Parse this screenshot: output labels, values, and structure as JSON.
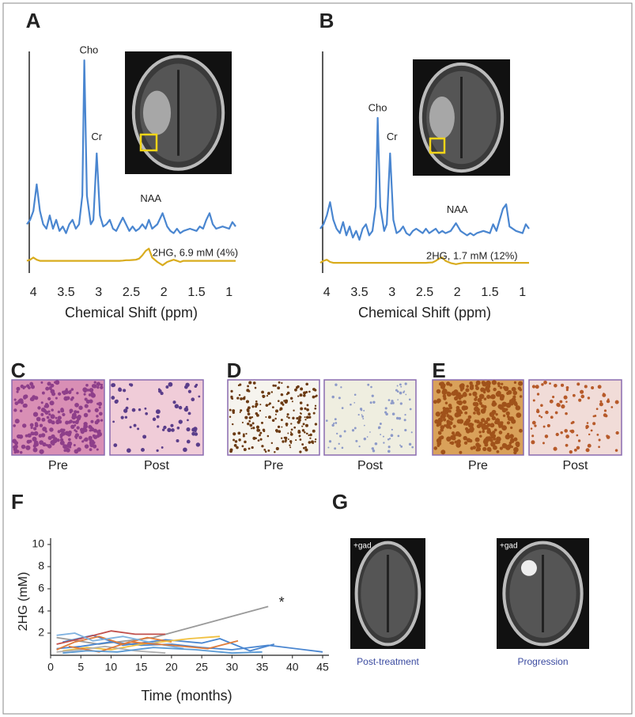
{
  "chart_data": [
    {
      "type": "line",
      "panel_label": "A",
      "xlabel": "Chemical Shift (ppm)",
      "xlim": [
        4.1,
        0.9
      ],
      "xticks": [
        4,
        3.5,
        3,
        2.5,
        2,
        1.5,
        1
      ],
      "ylim": [
        0,
        100
      ],
      "x": [
        4.1,
        4.05,
        4.0,
        3.95,
        3.9,
        3.85,
        3.8,
        3.75,
        3.7,
        3.65,
        3.6,
        3.55,
        3.5,
        3.45,
        3.4,
        3.35,
        3.3,
        3.25,
        3.22,
        3.18,
        3.12,
        3.08,
        3.03,
        2.98,
        2.93,
        2.88,
        2.83,
        2.78,
        2.73,
        2.68,
        2.63,
        2.58,
        2.53,
        2.48,
        2.43,
        2.38,
        2.33,
        2.28,
        2.23,
        2.18,
        2.1,
        2.02,
        1.95,
        1.9,
        1.85,
        1.8,
        1.75,
        1.7,
        1.6,
        1.5,
        1.45,
        1.4,
        1.35,
        1.3,
        1.25,
        1.2,
        1.1,
        1.0,
        0.95,
        0.9
      ],
      "series": [
        {
          "color": "#4a86d0",
          "values": [
            22,
            24,
            28,
            40,
            28,
            22,
            20,
            26,
            20,
            24,
            19,
            21,
            18,
            22,
            24,
            20,
            22,
            35,
            96,
            35,
            22,
            24,
            54,
            26,
            21,
            22,
            24,
            20,
            19,
            22,
            25,
            22,
            19,
            21,
            19,
            20,
            22,
            20,
            24,
            20,
            22,
            27,
            21,
            19,
            18,
            20,
            18,
            19,
            20,
            19,
            21,
            20,
            24,
            27,
            22,
            20,
            21,
            20,
            23,
            21
          ]
        },
        {
          "color": "#d9ac1e",
          "values": [
            5.5,
            6,
            7,
            6,
            5.5,
            5.5,
            5.5,
            5.5,
            5.5,
            5.5,
            5.5,
            5.5,
            5.5,
            5.5,
            5.5,
            5.5,
            5.5,
            5.5,
            5.5,
            5.5,
            5.5,
            5.5,
            5.5,
            5.5,
            5.5,
            5.5,
            5.5,
            5.5,
            5.5,
            5.5,
            5.6,
            5.8,
            5.8,
            5.9,
            6,
            6.5,
            8,
            10,
            11,
            7,
            5,
            3.5,
            5,
            5.5,
            6,
            5.5,
            5,
            5.5,
            5.5,
            5.5,
            5.5,
            5.5,
            5.5,
            5.5,
            5.5,
            5.5,
            5.5,
            5.5,
            5.5,
            5.5
          ]
        }
      ],
      "annotations": [
        {
          "text": "Cho",
          "x": 3.15,
          "y": 96
        },
        {
          "text": "Cr",
          "x": 3.03,
          "y": 57
        },
        {
          "text": "NAA",
          "x": 2.2,
          "y": 29
        },
        {
          "text": "2HG, 6.9 mM (4%)",
          "x": 2.2,
          "y": 6
        }
      ]
    },
    {
      "type": "line",
      "panel_label": "B",
      "xlabel": "Chemical Shift (ppm)",
      "xlim": [
        4.1,
        0.9
      ],
      "xticks": [
        4,
        3.5,
        3,
        2.5,
        2,
        1.5,
        1
      ],
      "ylim": [
        0,
        100
      ],
      "x": [
        4.1,
        4.05,
        4.0,
        3.95,
        3.9,
        3.85,
        3.8,
        3.75,
        3.7,
        3.65,
        3.6,
        3.55,
        3.5,
        3.45,
        3.4,
        3.35,
        3.3,
        3.25,
        3.22,
        3.18,
        3.12,
        3.08,
        3.03,
        2.98,
        2.93,
        2.88,
        2.83,
        2.78,
        2.73,
        2.68,
        2.63,
        2.58,
        2.53,
        2.48,
        2.43,
        2.38,
        2.33,
        2.28,
        2.23,
        2.18,
        2.1,
        2.02,
        1.95,
        1.9,
        1.85,
        1.8,
        1.75,
        1.7,
        1.6,
        1.5,
        1.45,
        1.4,
        1.35,
        1.3,
        1.25,
        1.2,
        1.1,
        1.0,
        0.95,
        0.9
      ],
      "series": [
        {
          "color": "#4a86d0",
          "values": [
            20,
            22,
            26,
            32,
            24,
            20,
            18,
            23,
            17,
            21,
            16,
            19,
            15,
            20,
            22,
            17,
            19,
            30,
            70,
            30,
            19,
            22,
            54,
            24,
            18,
            19,
            21,
            18,
            17,
            19,
            20,
            19,
            18,
            20,
            18,
            19,
            20,
            18,
            19,
            18,
            19,
            22.5,
            19,
            18,
            17,
            18,
            17,
            18,
            19,
            18,
            22,
            19,
            24,
            29,
            31,
            21,
            19,
            18,
            22,
            20
          ]
        },
        {
          "color": "#d9ac1e",
          "values": [
            4.6,
            5.5,
            6,
            5,
            4.6,
            4.6,
            4.6,
            4.6,
            4.6,
            4.6,
            4.6,
            4.6,
            4.6,
            4.6,
            4.6,
            4.6,
            4.6,
            4.6,
            4.6,
            4.6,
            4.6,
            4.6,
            4.6,
            4.6,
            4.6,
            4.6,
            4.6,
            4.6,
            4.6,
            4.6,
            4.6,
            4.6,
            4.6,
            4.6,
            4.7,
            4.8,
            5.5,
            6.5,
            7,
            5.5,
            4.5,
            4,
            4.4,
            4.6,
            4.6,
            4.6,
            4.6,
            4.6,
            4.6,
            4.6,
            4.6,
            4.6,
            4.6,
            4.6,
            4.6,
            4.6,
            4.6,
            4.6,
            4.6,
            4.6
          ]
        }
      ],
      "annotations": [
        {
          "text": "Cho",
          "x": 3.22,
          "y": 70
        },
        {
          "text": "Cr",
          "x": 3.0,
          "y": 57
        },
        {
          "text": "NAA",
          "x": 2.0,
          "y": 24
        },
        {
          "text": "2HG, 1.7 mM (12%)",
          "x": 2.5,
          "y": 4.6
        }
      ]
    },
    {
      "type": "line",
      "panel_label": "F",
      "xlabel": "Time (months)",
      "ylabel": "2HG (mM)",
      "xlim": [
        0,
        45
      ],
      "xticks": [
        0,
        5,
        10,
        15,
        20,
        25,
        30,
        35,
        40,
        45
      ],
      "ylim": [
        0,
        10
      ],
      "yticks": [
        2,
        4,
        6,
        8,
        10
      ],
      "series": [
        {
          "color": "#9a9a9a",
          "x": [
            1,
            8,
            17,
            36
          ],
          "values": [
            1.6,
            1.0,
            1.6,
            4.4
          ]
        },
        {
          "color": "#4a86d0",
          "x": [
            1,
            5,
            10,
            15,
            20,
            25,
            30,
            36,
            45
          ],
          "values": [
            0.6,
            0.8,
            1.2,
            0.9,
            1.0,
            0.7,
            0.5,
            0.9,
            0.3
          ]
        },
        {
          "color": "#4a86d0",
          "x": [
            2,
            7,
            12,
            19,
            25,
            28,
            33,
            37
          ],
          "values": [
            1.2,
            1.8,
            0.9,
            1.4,
            1.1,
            1.5,
            0.4,
            1.0
          ]
        },
        {
          "color": "#c0504d",
          "x": [
            1,
            5,
            10,
            14,
            19
          ],
          "values": [
            1.0,
            1.5,
            2.2,
            1.9,
            1.9
          ]
        },
        {
          "color": "#e07b39",
          "x": [
            1,
            4,
            8,
            12,
            16,
            20
          ],
          "values": [
            0.5,
            1.2,
            1.7,
            1.0,
            1.6,
            1.2
          ]
        },
        {
          "color": "#f0c040",
          "x": [
            2,
            6,
            10,
            15,
            23,
            28
          ],
          "values": [
            0.4,
            0.7,
            0.5,
            1.0,
            1.5,
            1.7
          ]
        },
        {
          "color": "#7fb2e0",
          "x": [
            1,
            4,
            7,
            12,
            18,
            22
          ],
          "values": [
            1.8,
            2.0,
            1.3,
            1.7,
            1.0,
            0.6
          ]
        },
        {
          "color": "#b0b0b0",
          "x": [
            1,
            5,
            9,
            14,
            19
          ],
          "values": [
            0.3,
            0.5,
            0.8,
            0.4,
            0.2
          ]
        },
        {
          "color": "#e07b39",
          "x": [
            3,
            8,
            13,
            20,
            26,
            31
          ],
          "values": [
            0.8,
            0.3,
            1.2,
            0.9,
            0.6,
            1.3
          ]
        },
        {
          "color": "#5b9bd5",
          "x": [
            2,
            6,
            11,
            17,
            24,
            30,
            35
          ],
          "values": [
            0.2,
            0.4,
            0.3,
            0.7,
            0.5,
            0.2,
            0.3
          ]
        }
      ],
      "annotations": [
        {
          "text": "*",
          "x": 37.5,
          "y": 4.7
        }
      ]
    }
  ],
  "panels": [
    {
      "label": "C",
      "captions": [
        "Pre",
        "Post"
      ]
    },
    {
      "label": "D",
      "captions": [
        "Pre",
        "Post"
      ]
    },
    {
      "label": "E",
      "captions": [
        "Pre",
        "Post"
      ]
    },
    {
      "label": "G",
      "tags": [
        "+gad",
        "+gad"
      ],
      "captions": [
        "Post-treatment",
        "Progression"
      ]
    }
  ]
}
